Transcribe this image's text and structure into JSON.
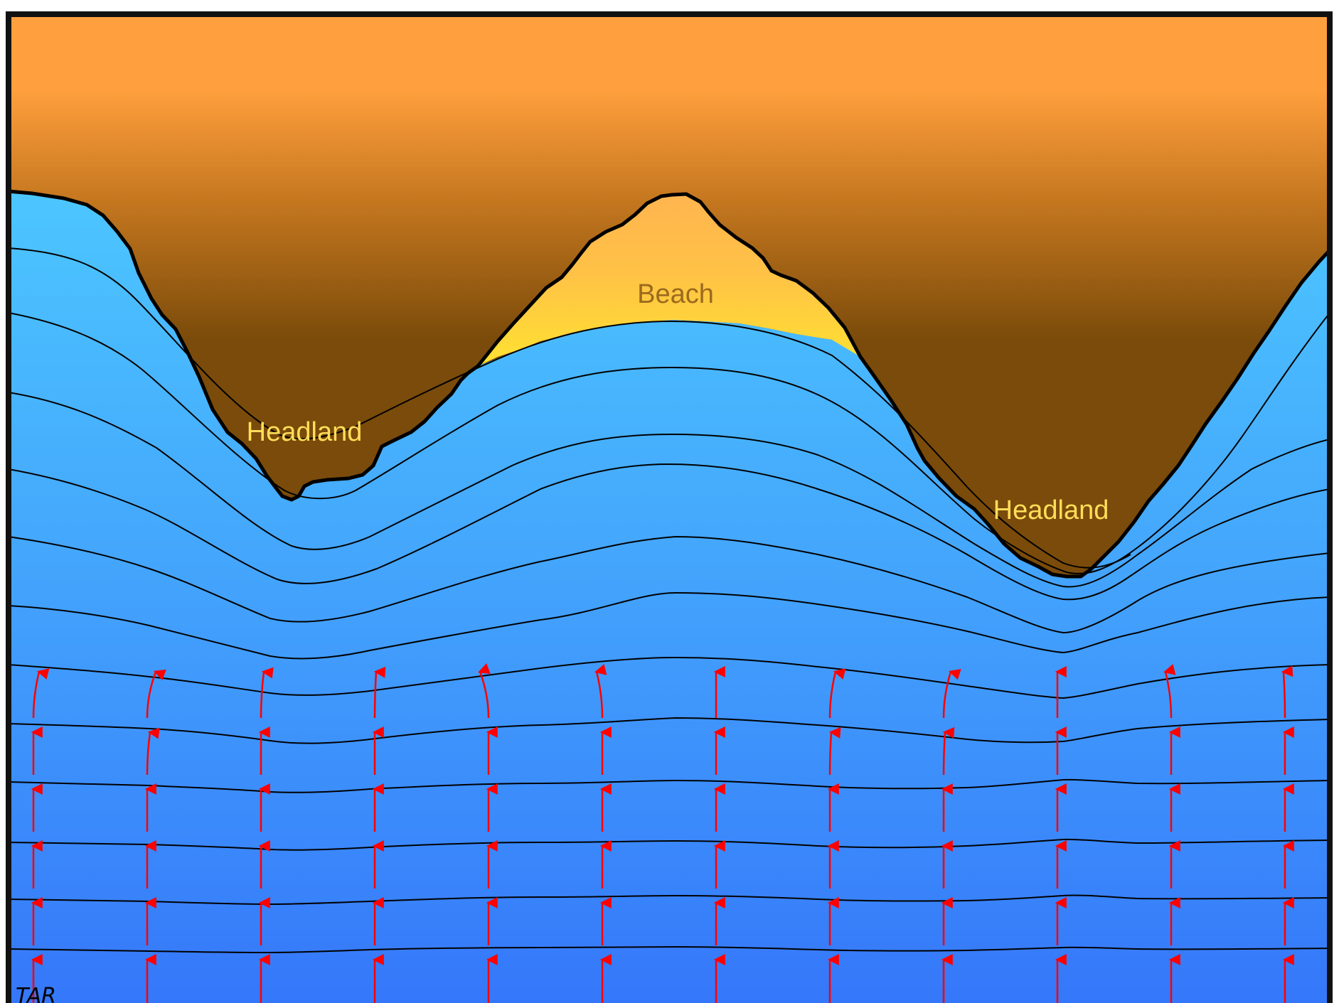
{
  "diagram": {
    "labels": {
      "headland_left": "Headland",
      "beach": "Beach",
      "headland_right": "Headland"
    },
    "signature": "TAR",
    "colors": {
      "land_top": "#FF9F3D",
      "land_dark": "#7A4B0A",
      "beach_top": "#FFB54F",
      "beach_bottom": "#FFE232",
      "water_light": "#4CC6FF",
      "water_deep": "#3577FA",
      "wave_crest": "#000000",
      "wave_arrow": "#FF0000",
      "label_text": "#FFDE59",
      "beach_label_text": "#9B6A1D",
      "frame": "#111111"
    },
    "icons": {
      "wave_direction": "red-up-arrow"
    }
  }
}
